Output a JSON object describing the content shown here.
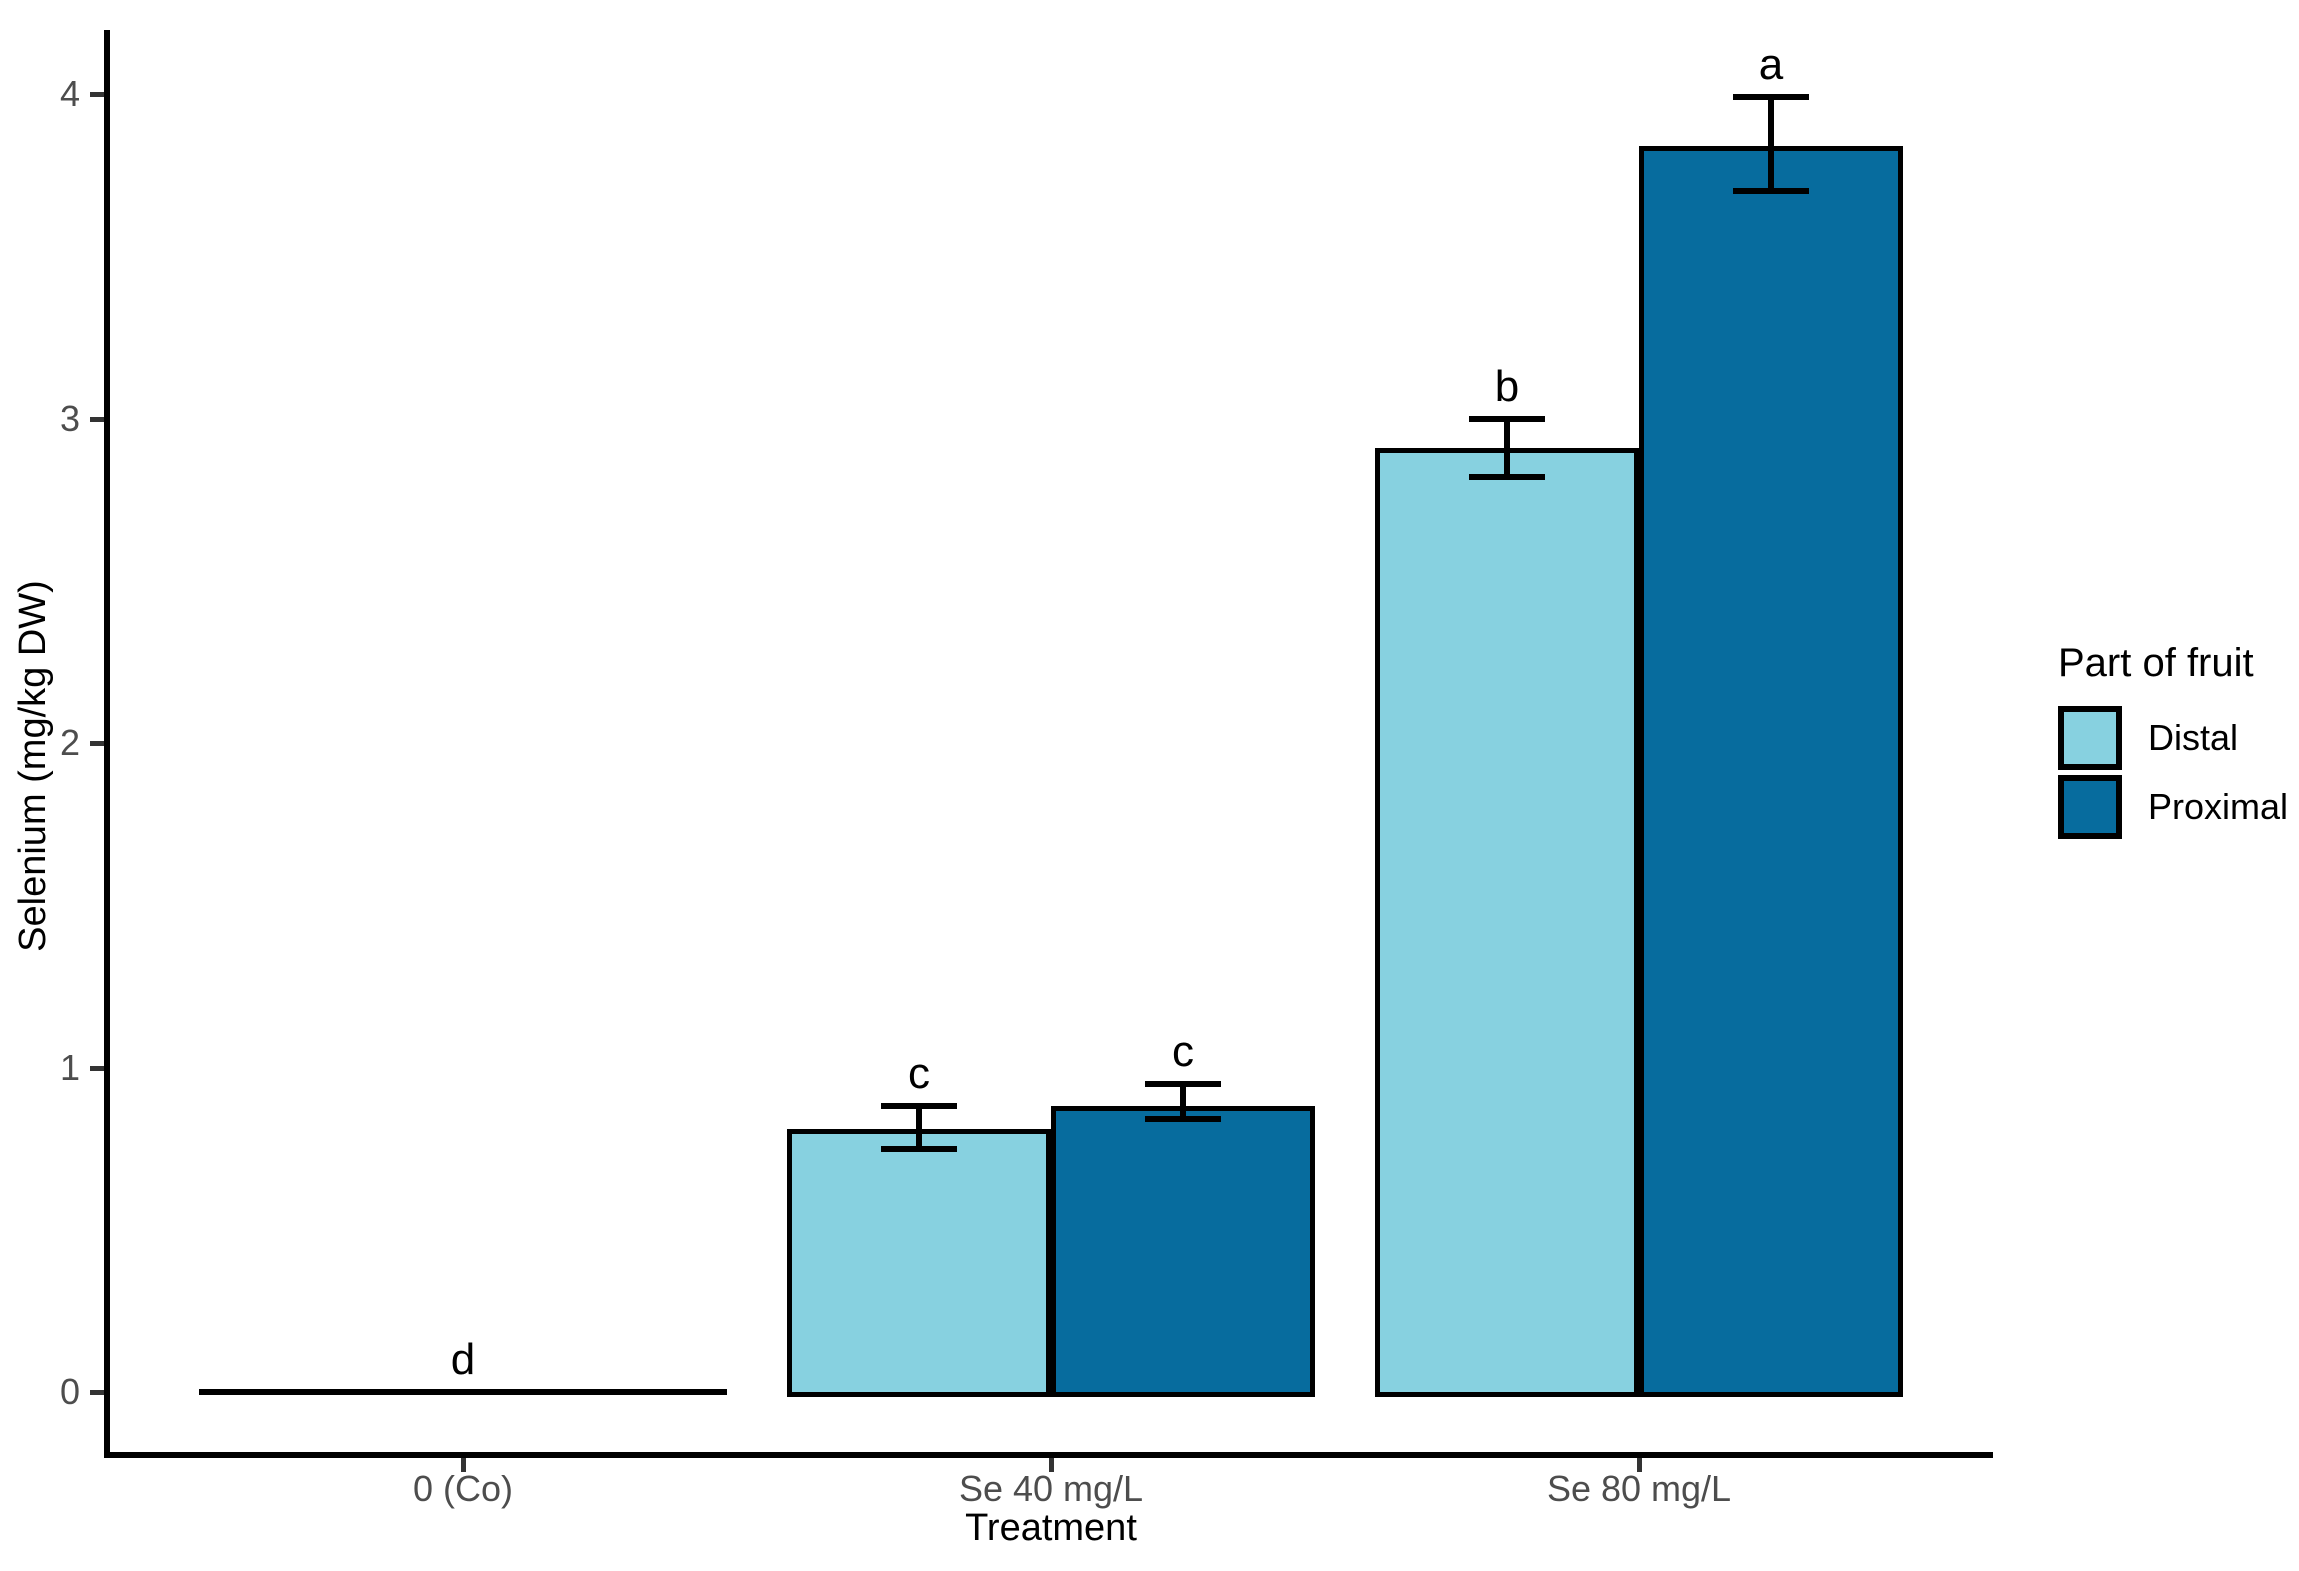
{
  "figure": {
    "background": "#FFFFFF"
  },
  "chart_data": {
    "type": "bar",
    "title": "",
    "xlabel": "Treatment",
    "ylabel": "Selenium (mg/kg DW)",
    "categories": [
      "0 (Co)",
      "Se 40 mg/L",
      "Se 80 mg/L"
    ],
    "series": [
      {
        "name": "Distal",
        "color": "#87D1E0",
        "values": [
          0,
          0.81,
          2.91
        ],
        "error_low": [
          null,
          0.75,
          2.82
        ],
        "error_high": [
          null,
          0.88,
          3.0
        ]
      },
      {
        "name": "Proximal",
        "color": "#076C9E",
        "values": [
          0,
          0.88,
          3.84
        ],
        "error_low": [
          null,
          0.84,
          3.7
        ],
        "error_high": [
          null,
          0.95,
          3.99
        ]
      }
    ],
    "sig_letters": [
      {
        "category": "0 (Co)",
        "series": null,
        "label": "d"
      },
      {
        "category": "Se 40 mg/L",
        "series": "Distal",
        "label": "c"
      },
      {
        "category": "Se 40 mg/L",
        "series": "Proximal",
        "label": "c"
      },
      {
        "category": "Se 80 mg/L",
        "series": "Distal",
        "label": "b"
      },
      {
        "category": "Se 80 mg/L",
        "series": "Proximal",
        "label": "a"
      }
    ],
    "yticks": [
      0,
      1,
      2,
      3,
      4
    ],
    "ylim": [
      0,
      4.2
    ],
    "grid": false,
    "legend": {
      "title": "Part of fruit",
      "position": "right"
    },
    "bar_outline_color": "#000000",
    "error_bar_color": "#000000",
    "sig_letter_color": "#000000",
    "axis_line_color": "#000000",
    "tick_color": "#333333",
    "tick_label_color": "#4D4D4D"
  }
}
